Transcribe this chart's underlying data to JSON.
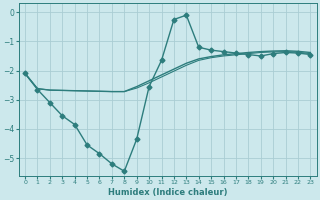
{
  "bg_color": "#cce8ec",
  "line_color": "#2d7d7d",
  "grid_color": "#aacdd4",
  "xlabel": "Humidex (Indice chaleur)",
  "xlim": [
    -0.5,
    23.5
  ],
  "ylim": [
    -5.6,
    0.3
  ],
  "yticks": [
    0,
    -1,
    -2,
    -3,
    -4,
    -5
  ],
  "xticks": [
    0,
    1,
    2,
    3,
    4,
    5,
    6,
    7,
    8,
    9,
    10,
    11,
    12,
    13,
    14,
    15,
    16,
    17,
    18,
    19,
    20,
    21,
    22,
    23
  ],
  "series": [
    {
      "x": [
        0,
        1,
        2,
        3,
        4,
        5,
        6,
        7,
        8,
        9,
        10,
        11,
        12,
        13,
        14,
        15,
        16,
        17,
        18,
        19,
        20,
        21,
        22,
        23
      ],
      "y": [
        -2.1,
        -2.65,
        -3.1,
        -3.55,
        -3.85,
        -4.55,
        -4.85,
        -5.2,
        -5.45,
        -4.35,
        -2.55,
        -1.65,
        -0.25,
        -0.1,
        -1.2,
        -1.3,
        -1.35,
        -1.4,
        -1.45,
        -1.5,
        -1.42,
        -1.38,
        -1.4,
        -1.45
      ],
      "marker": "D",
      "ms": 2.5,
      "lw": 1.0
    },
    {
      "x": [
        0,
        1,
        2,
        3,
        4,
        5,
        6,
        7,
        8,
        9,
        10,
        11,
        12,
        13,
        14,
        15,
        16,
        17,
        18,
        19,
        20,
        21,
        22,
        23
      ],
      "y": [
        -2.1,
        -2.62,
        -2.67,
        -2.68,
        -2.69,
        -2.7,
        -2.71,
        -2.72,
        -2.72,
        -2.55,
        -2.35,
        -2.15,
        -1.95,
        -1.75,
        -1.6,
        -1.52,
        -1.46,
        -1.42,
        -1.38,
        -1.35,
        -1.33,
        -1.32,
        -1.34,
        -1.38
      ],
      "marker": null,
      "ms": 0,
      "lw": 1.0
    },
    {
      "x": [
        0,
        1,
        2,
        3,
        4,
        5,
        6,
        7,
        8,
        9,
        10,
        11,
        12,
        13,
        14,
        15,
        16,
        17,
        18,
        19,
        20,
        21,
        22,
        23
      ],
      "y": [
        -2.1,
        -2.62,
        -2.67,
        -2.68,
        -2.69,
        -2.7,
        -2.71,
        -2.72,
        -2.72,
        -2.6,
        -2.42,
        -2.22,
        -2.02,
        -1.82,
        -1.65,
        -1.56,
        -1.5,
        -1.46,
        -1.42,
        -1.38,
        -1.36,
        -1.35,
        -1.37,
        -1.42
      ],
      "marker": null,
      "ms": 0,
      "lw": 0.8
    }
  ]
}
